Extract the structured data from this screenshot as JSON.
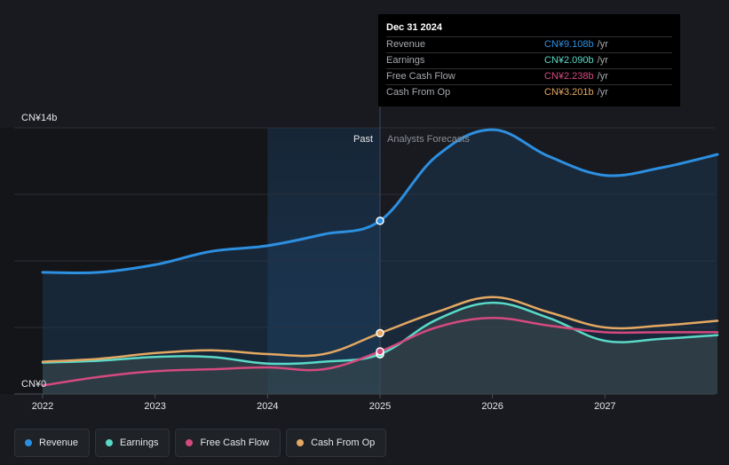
{
  "chart_data": {
    "type": "area",
    "currency_unit": "CN¥ billions",
    "y_axis": {
      "top_label": "CN¥14b",
      "bottom_label": "CN¥0",
      "ylim": [
        0,
        14
      ]
    },
    "x_axis": {
      "ticks": [
        "2022",
        "2023",
        "2024",
        "2025",
        "2026",
        "2027"
      ],
      "xlim": [
        2022.0,
        2028.0
      ]
    },
    "past_label": "Past",
    "forecast_label": "Analysts Forecasts",
    "divider_x": 2025.0,
    "highlight_start_x": 2024.0,
    "series": [
      {
        "name": "Revenue",
        "color": "#2d8fe0",
        "points": [
          [
            2022.0,
            6.4
          ],
          [
            2022.5,
            6.4
          ],
          [
            2023.0,
            6.8
          ],
          [
            2023.5,
            7.5
          ],
          [
            2024.0,
            7.8
          ],
          [
            2024.5,
            8.4
          ],
          [
            2025.0,
            9.108
          ],
          [
            2025.5,
            12.5
          ],
          [
            2026.0,
            13.9
          ],
          [
            2026.5,
            12.5
          ],
          [
            2027.0,
            11.5
          ],
          [
            2027.5,
            11.9
          ],
          [
            2028.0,
            12.6
          ]
        ],
        "fill": true
      },
      {
        "name": "Earnings",
        "color": "#5ad9c7",
        "points": [
          [
            2022.0,
            1.65
          ],
          [
            2022.5,
            1.75
          ],
          [
            2023.0,
            1.95
          ],
          [
            2023.5,
            1.95
          ],
          [
            2024.0,
            1.6
          ],
          [
            2024.5,
            1.7
          ],
          [
            2025.0,
            2.09
          ],
          [
            2025.5,
            3.9
          ],
          [
            2026.0,
            4.8
          ],
          [
            2026.5,
            4.0
          ],
          [
            2027.0,
            2.8
          ],
          [
            2027.5,
            2.9
          ],
          [
            2028.0,
            3.1
          ]
        ],
        "fill": true
      },
      {
        "name": "Free Cash Flow",
        "color": "#d44a7e",
        "points": [
          [
            2022.0,
            0.45
          ],
          [
            2022.5,
            0.9
          ],
          [
            2023.0,
            1.2
          ],
          [
            2023.5,
            1.3
          ],
          [
            2024.0,
            1.4
          ],
          [
            2024.5,
            1.3
          ],
          [
            2025.0,
            2.238
          ],
          [
            2025.5,
            3.5
          ],
          [
            2026.0,
            4.0
          ],
          [
            2026.5,
            3.6
          ],
          [
            2027.0,
            3.25
          ],
          [
            2027.5,
            3.25
          ],
          [
            2028.0,
            3.25
          ]
        ],
        "fill": false
      },
      {
        "name": "Cash From Op",
        "color": "#e3a862",
        "points": [
          [
            2022.0,
            1.7
          ],
          [
            2022.5,
            1.85
          ],
          [
            2023.0,
            2.15
          ],
          [
            2023.5,
            2.3
          ],
          [
            2024.0,
            2.1
          ],
          [
            2024.5,
            2.1
          ],
          [
            2025.0,
            3.201
          ],
          [
            2025.5,
            4.3
          ],
          [
            2026.0,
            5.1
          ],
          [
            2026.5,
            4.3
          ],
          [
            2027.0,
            3.5
          ],
          [
            2027.5,
            3.6
          ],
          [
            2028.0,
            3.85
          ]
        ],
        "fill": false
      }
    ]
  },
  "tooltip": {
    "date": "Dec 31 2024",
    "unit": "/yr",
    "rows": [
      {
        "label": "Revenue",
        "value": "CN¥9.108b",
        "color": "#2d8fe0"
      },
      {
        "label": "Earnings",
        "value": "CN¥2.090b",
        "color": "#5ad9c7"
      },
      {
        "label": "Free Cash Flow",
        "value": "CN¥2.238b",
        "color": "#d44a7e"
      },
      {
        "label": "Cash From Op",
        "value": "CN¥3.201b",
        "color": "#e3a862"
      }
    ]
  },
  "legend": [
    {
      "label": "Revenue",
      "color": "#2d8fe0"
    },
    {
      "label": "Earnings",
      "color": "#5ad9c7"
    },
    {
      "label": "Free Cash Flow",
      "color": "#d44a7e"
    },
    {
      "label": "Cash From Op",
      "color": "#e3a862"
    }
  ]
}
